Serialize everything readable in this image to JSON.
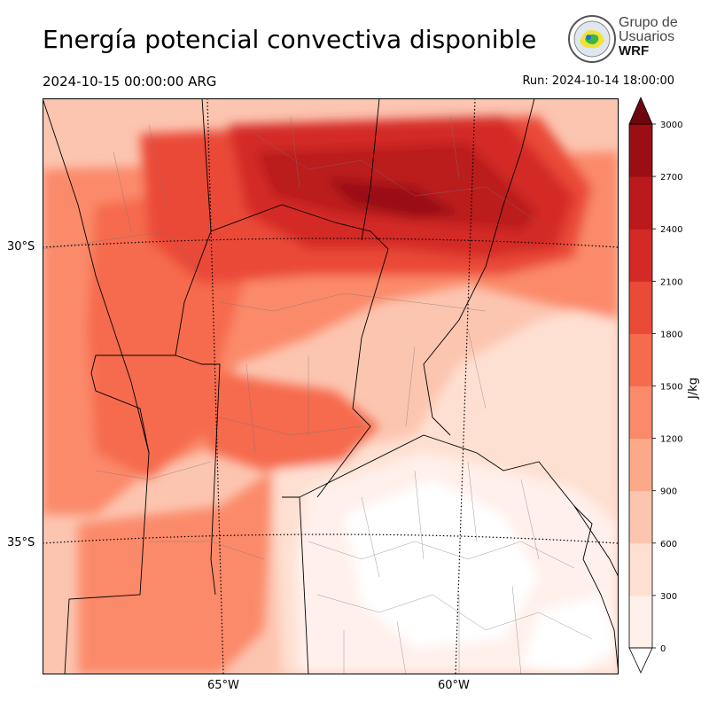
{
  "title": "Energía potencial convectiva disponible",
  "valid_time": "2024-10-15 00:00:00 ARG",
  "run_time": "Run: 2024-10-14 18:00:00",
  "logo": {
    "line1": "Grupo de",
    "line2": "Usuarios",
    "line3": "WRF"
  },
  "map": {
    "lat_labels": [
      "30°S",
      "35°S"
    ],
    "lon_labels": [
      "65°W",
      "60°W"
    ]
  },
  "colorbar": {
    "label": "J/kg",
    "ticks": [
      "0",
      "300",
      "600",
      "900",
      "1200",
      "1500",
      "1800",
      "2100",
      "2400",
      "2700",
      "3000"
    ],
    "colors": [
      "#fff0eb",
      "#fee0d2",
      "#fcc5b0",
      "#fca98a",
      "#fb8a6a",
      "#f66b4e",
      "#ea4a38",
      "#d42a26",
      "#bb1a1c",
      "#9a0e14",
      "#6e0610"
    ],
    "extend": "max"
  }
}
